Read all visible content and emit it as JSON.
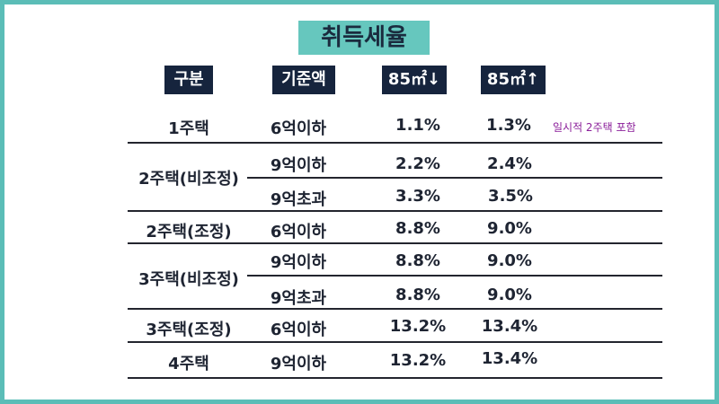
{
  "title": "취득세율",
  "headers": {
    "category": "구분",
    "base": "기준액",
    "under85": "85㎡↓",
    "over85": "85㎡↑"
  },
  "rows": [
    {
      "category": "1주택",
      "base": "6억이하",
      "under85": "1.1%",
      "over85": "1.3%"
    },
    {
      "category": "2주택(비조정)",
      "base": "9억이하",
      "under85": "2.2%",
      "over85": "2.4%"
    },
    {
      "category": "",
      "base": "9억초과",
      "under85": "3.3%",
      "over85": "3.5%"
    },
    {
      "category": "2주택(조정)",
      "base": "6억이하",
      "under85": "8.8%",
      "over85": "9.0%"
    },
    {
      "category": "3주택(비조정)",
      "base": "9억이하",
      "under85": "8.8%",
      "over85": "9.0%"
    },
    {
      "category": "",
      "base": "9억초과",
      "under85": "8.8%",
      "over85": "9.0%"
    },
    {
      "category": "3주택(조정)",
      "base": "6억이하",
      "under85": "13.2%",
      "over85": "13.4%"
    },
    {
      "category": "4주택",
      "base": "9억이하",
      "under85": "13.2%",
      "over85": "13.4%"
    }
  ],
  "note": "일시적 2주택 포함",
  "colors": {
    "border": "#5bbdb7",
    "title_bg": "#66c7be",
    "header_bg": "#16243d",
    "note": "#8b1f9a"
  }
}
